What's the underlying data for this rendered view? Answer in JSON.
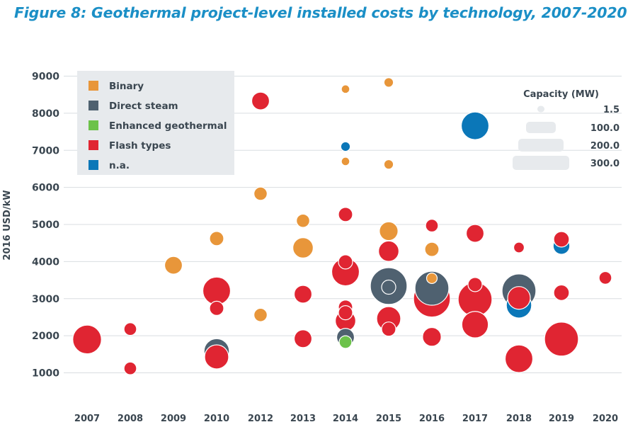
{
  "title": "Figure 8: Geothermal project-level installed costs by technology, 2007-2020",
  "colors": {
    "Binary": "#e8963a",
    "Direct steam": "#4f6170",
    "Enhanced geothermal": "#6cc24a",
    "Flash types": "#e02532",
    "n.a.": "#0b77b8"
  },
  "chart_data": {
    "type": "scatter",
    "title": "Figure 8: Geothermal project-level installed costs by technology, 2007-2020",
    "xlabel": "",
    "ylabel": "2016 USD/kW",
    "categories": [
      "2007",
      "2008",
      "2009",
      "2010",
      "2012",
      "2013",
      "2014",
      "2015",
      "2016",
      "2017",
      "2018",
      "2019",
      "2020"
    ],
    "y_ticks": [
      1000,
      2000,
      3000,
      4000,
      5000,
      6000,
      7000,
      8000,
      9000
    ],
    "ylim": [
      500,
      9300
    ],
    "grid": true,
    "legend_position": "top-left",
    "legend": [
      "Binary",
      "Direct steam",
      "Enhanced geothermal",
      "Flash types",
      "n.a."
    ],
    "size_legend": {
      "title": "Capacity (MW)",
      "labels": [
        "1.5",
        "100.0",
        "200.0",
        "300.0"
      ],
      "values": [
        1.5,
        100,
        200,
        300
      ]
    },
    "points": [
      {
        "year": "2007",
        "series": "Flash types",
        "y": 1900,
        "mw": 110
      },
      {
        "year": "2008",
        "series": "Flash types",
        "y": 2180,
        "mw": 10
      },
      {
        "year": "2008",
        "series": "Flash types",
        "y": 1120,
        "mw": 10
      },
      {
        "year": "2009",
        "series": "Binary",
        "y": 3900,
        "mw": 30
      },
      {
        "year": "2010",
        "series": "Binary",
        "y": 4620,
        "mw": 15
      },
      {
        "year": "2010",
        "series": "Flash types",
        "y": 3210,
        "mw": 100
      },
      {
        "year": "2010",
        "series": "Flash types",
        "y": 2740,
        "mw": 15
      },
      {
        "year": "2010",
        "series": "Flash types",
        "y": 1430,
        "mw": 70
      },
      {
        "year": "2010",
        "series": "Direct steam",
        "y": 1580,
        "mw": 80
      },
      {
        "year": "2012",
        "series": "Flash types",
        "y": 8330,
        "mw": 30
      },
      {
        "year": "2012",
        "series": "Binary",
        "y": 5830,
        "mw": 12
      },
      {
        "year": "2012",
        "series": "Binary",
        "y": 2560,
        "mw": 12
      },
      {
        "year": "2013",
        "series": "Binary",
        "y": 5100,
        "mw": 12
      },
      {
        "year": "2013",
        "series": "Binary",
        "y": 4370,
        "mw": 45
      },
      {
        "year": "2013",
        "series": "Flash types",
        "y": 3120,
        "mw": 30
      },
      {
        "year": "2013",
        "series": "Flash types",
        "y": 1920,
        "mw": 30
      },
      {
        "year": "2014",
        "series": "Binary",
        "y": 8650,
        "mw": 1.5
      },
      {
        "year": "2014",
        "series": "n.a.",
        "y": 7100,
        "mw": 3
      },
      {
        "year": "2014",
        "series": "Binary",
        "y": 6700,
        "mw": 1.5
      },
      {
        "year": "2014",
        "series": "Flash types",
        "y": 5270,
        "mw": 15
      },
      {
        "year": "2014",
        "series": "Flash types",
        "y": 3720,
        "mw": 100
      },
      {
        "year": "2014",
        "series": "Flash types",
        "y": 3990,
        "mw": 15
      },
      {
        "year": "2014",
        "series": "Flash types",
        "y": 2770,
        "mw": 15
      },
      {
        "year": "2014",
        "series": "Flash types",
        "y": 2620,
        "mw": 15
      },
      {
        "year": "2014",
        "series": "Flash types",
        "y": 2400,
        "mw": 45
      },
      {
        "year": "2014",
        "series": "Enhanced geothermal",
        "y": 1830,
        "mw": 10
      },
      {
        "year": "2014",
        "series": "Direct steam",
        "y": 1960,
        "mw": 30
      },
      {
        "year": "2015",
        "series": "Binary",
        "y": 8830,
        "mw": 3
      },
      {
        "year": "2015",
        "series": "Binary",
        "y": 6620,
        "mw": 3
      },
      {
        "year": "2015",
        "series": "Binary",
        "y": 4820,
        "mw": 35
      },
      {
        "year": "2015",
        "series": "Flash types",
        "y": 4280,
        "mw": 45
      },
      {
        "year": "2015",
        "series": "Flash types",
        "y": 2460,
        "mw": 70
      },
      {
        "year": "2015",
        "series": "Flash types",
        "y": 2180,
        "mw": 15
      },
      {
        "year": "2015",
        "series": "Direct steam",
        "y": 3340,
        "mw": 200
      },
      {
        "year": "2015",
        "series": "Direct steam",
        "y": 3310,
        "mw": 15
      },
      {
        "year": "2016",
        "series": "Flash types",
        "y": 4970,
        "mw": 10
      },
      {
        "year": "2016",
        "series": "Binary",
        "y": 4330,
        "mw": 15
      },
      {
        "year": "2016",
        "series": "Binary",
        "y": 3550,
        "mw": 5
      },
      {
        "year": "2016",
        "series": "Direct steam",
        "y": 3280,
        "mw": 165
      },
      {
        "year": "2016",
        "series": "Flash types",
        "y": 3000,
        "mw": 200
      },
      {
        "year": "2016",
        "series": "Flash types",
        "y": 1970,
        "mw": 35
      },
      {
        "year": "2017",
        "series": "n.a.",
        "y": 7660,
        "mw": 100
      },
      {
        "year": "2017",
        "series": "Flash types",
        "y": 4760,
        "mw": 30
      },
      {
        "year": "2017",
        "series": "Flash types",
        "y": 3380,
        "mw": 15
      },
      {
        "year": "2017",
        "series": "Flash types",
        "y": 2980,
        "mw": 165
      },
      {
        "year": "2017",
        "series": "Flash types",
        "y": 2300,
        "mw": 90
      },
      {
        "year": "2018",
        "series": "Flash types",
        "y": 4380,
        "mw": 5
      },
      {
        "year": "2018",
        "series": "n.a.",
        "y": 2820,
        "mw": 80
      },
      {
        "year": "2018",
        "series": "Flash types",
        "y": 3020,
        "mw": 60
      },
      {
        "year": "2018",
        "series": "Direct steam",
        "y": 3210,
        "mw": 165
      },
      {
        "year": "2018",
        "series": "Flash types",
        "y": 1380,
        "mw": 100
      },
      {
        "year": "2019",
        "series": "Flash types",
        "y": 4600,
        "mw": 20
      },
      {
        "year": "2019",
        "series": "n.a.",
        "y": 4420,
        "mw": 25
      },
      {
        "year": "2019",
        "series": "Flash types",
        "y": 3160,
        "mw": 20
      },
      {
        "year": "2019",
        "series": "Flash types",
        "y": 1910,
        "mw": 165
      },
      {
        "year": "2020",
        "series": "Flash types",
        "y": 3560,
        "mw": 10
      }
    ]
  }
}
